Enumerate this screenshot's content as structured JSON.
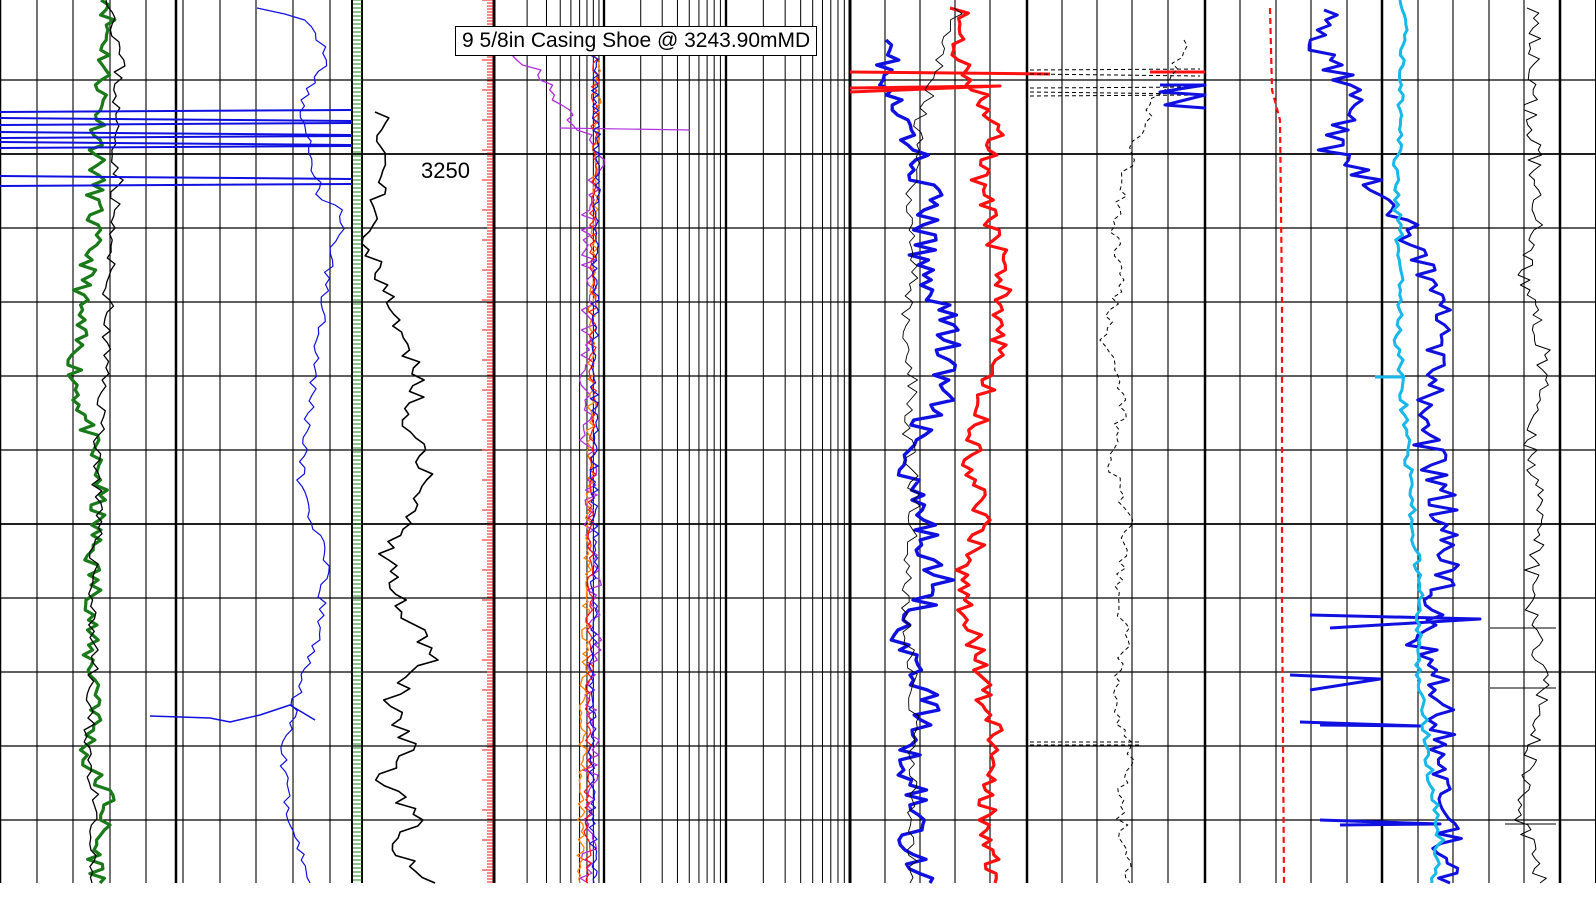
{
  "annotation": "9 5/8in Casing Shoe @ 3243.90mMD",
  "depth_labels": [
    "3250"
  ],
  "colors": {
    "green": "#1a7a1a",
    "black": "#000000",
    "blue": "#1010e0",
    "red": "#ff1010",
    "cyan": "#18b8ea",
    "purple": "#b030e0",
    "orange": "#ff8000",
    "rule_green": "#1a8a1a"
  },
  "chart_data": {
    "type": "line",
    "title": "",
    "depth_unit": "mMD",
    "depth_range": [
      3243,
      3273
    ],
    "labeled_depths": [
      3250
    ],
    "casing_shoe_depth": 3243.9,
    "tracks": [
      {
        "name": "",
        "curves": [
          {
            "name": "",
            "color": "green",
            "x": [
              55,
              50,
              38,
              48,
              20,
              45,
              18,
              52,
              15,
              50,
              12,
              48,
              15,
              50,
              22,
              55
            ],
            "depth": [
              3243,
              3246,
              3248,
              3250,
              3252,
              3254,
              3256,
              3258,
              3260,
              3262,
              3264,
              3266,
              3268,
              3270,
              3272,
              3273
            ]
          },
          {
            "name": "",
            "color": "black",
            "x": [
              60,
              68,
              55,
              60,
              58,
              52,
              55,
              48,
              50,
              42,
              45,
              40,
              45,
              38,
              42,
              40
            ],
            "depth": [
              3243,
              3246,
              3248,
              3250,
              3252,
              3254,
              3256,
              3258,
              3260,
              3262,
              3264,
              3266,
              3268,
              3270,
              3272,
              3273
            ]
          },
          {
            "name": "",
            "color": "blue",
            "x": [
              70,
              90,
              92,
              88,
              100,
              96,
              90,
              70,
              60,
              40,
              45,
              20,
              42,
              35,
              30,
              40
            ],
            "depth": [
              3243,
              3245,
              3246,
              3247,
              3248,
              3250,
              3252,
              3254,
              3256,
              3258,
              3261,
              3265,
              3267,
              3269,
              3271,
              3273
            ]
          }
        ]
      },
      {
        "name": "",
        "curves": [
          {
            "name": "",
            "color": "black",
            "x": [
              20,
              10,
              28,
              22,
              35,
              45,
              55,
              60,
              50,
              65,
              48,
              58,
              40,
              55
            ],
            "depth": [
              3246,
              3249,
              3252,
              3254,
              3256,
              3258,
              3260,
              3262,
              3264,
              3266,
              3268,
              3270,
              3272,
              3273
            ]
          }
        ]
      },
      {
        "name": "",
        "scale": "log",
        "curves": [
          {
            "name": "",
            "color": "purple",
            "x": [
              15,
              60,
              35,
              40,
              38,
              36,
              37
            ],
            "depth": [
              3244,
              3247,
              3249,
              3256,
              3262,
              3268,
              3273
            ]
          },
          {
            "name": "",
            "color": "orange",
            "x": [
              30,
              28,
              30,
              29,
              27,
              28,
              29
            ],
            "depth": [
              3244,
              3250,
              3255,
              3260,
              3265,
              3270,
              3273
            ]
          },
          {
            "name": "",
            "color": "red",
            "x": [
              29,
              30,
              28,
              30,
              29,
              30,
              28
            ],
            "depth": [
              3244,
              3250,
              3255,
              3260,
              3265,
              3270,
              3273
            ]
          },
          {
            "name": "",
            "color": "blue",
            "x": [
              31,
              30,
              31,
              32,
              30,
              31,
              30
            ],
            "depth": [
              3244,
              3250,
              3255,
              3260,
              3265,
              3270,
              3273
            ]
          }
        ]
      },
      {
        "name": "",
        "curves": [
          {
            "name": "",
            "color": "blue",
            "x": [
              15,
              25,
              30,
              28,
              35,
              30,
              32,
              28,
              25,
              10,
              18,
              20,
              15,
              18,
              15,
              20
            ],
            "depth": [
              3244,
              3246,
              3248,
              3250,
              3252,
              3254,
              3256,
              3258,
              3260,
              3262,
              3264,
              3266,
              3268,
              3270,
              3272,
              3273
            ]
          },
          {
            "name": "",
            "color": "red",
            "x": [
              30,
              38,
              35,
              40,
              45,
              42,
              48,
              44,
              40,
              38,
              40,
              35,
              40,
              35,
              38,
              40
            ],
            "depth": [
              3244,
              3246,
              3248,
              3250,
              3252,
              3254,
              3256,
              3258,
              3260,
              3262,
              3264,
              3266,
              3268,
              3270,
              3272,
              3273
            ]
          },
          {
            "name": "",
            "color": "black",
            "x": [
              80,
              72,
              75,
              70,
              78,
              76,
              74,
              77,
              75,
              78,
              74
            ],
            "depth": [
              3244,
              3247,
              3250,
              3253,
              3256,
              3259,
              3262,
              3265,
              3268,
              3271,
              3273
            ]
          }
        ]
      },
      {
        "name": "",
        "curves": [
          {
            "name": "",
            "color": "red",
            "x": [
              20,
              22,
              28,
              28,
              28
            ],
            "depth": [
              3243,
              3245,
              3247,
              3260,
              3273
            ]
          },
          {
            "name": "",
            "color": "blue",
            "x": [
              40,
              45,
              60,
              75,
              50,
              40,
              30,
              20,
              15,
              12
            ],
            "depth": [
              3243,
              3245,
              3249,
              3252,
              3257,
              3261,
              3264,
              3266,
              3269,
              3273
            ]
          },
          {
            "name": "",
            "color": "cyan",
            "x": [
              45,
              46,
              45,
              47,
              48,
              50,
              51,
              52
            ],
            "depth": [
              3243,
              3248,
              3252,
              3256,
              3260,
              3264,
              3268,
              3273
            ]
          }
        ]
      },
      {
        "name": "",
        "curves": [
          {
            "name": "",
            "color": "black",
            "x": [
              60,
              40,
              55,
              35,
              50,
              30,
              45,
              30,
              40,
              35
            ],
            "depth": [
              3243,
              3246,
              3249,
              3252,
              3255,
              3258,
              3261,
              3264,
              3267,
              3273
            ]
          }
        ]
      }
    ]
  }
}
